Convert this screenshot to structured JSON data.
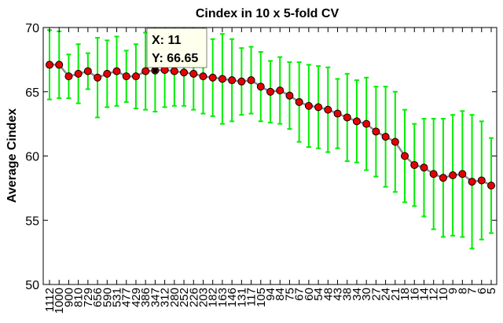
{
  "chart_data": {
    "type": "line",
    "title": "Cindex in 10 x 5-fold CV",
    "xlabel": "",
    "ylabel": "Average Cindex",
    "ylim": [
      50,
      70
    ],
    "yticks": [
      50,
      55,
      60,
      65,
      70
    ],
    "grid": false,
    "categories": [
      "1112",
      "1000",
      "900",
      "810",
      "729",
      "656",
      "590",
      "531",
      "477",
      "429",
      "386",
      "347",
      "312",
      "280",
      "252",
      "226",
      "203",
      "182",
      "163",
      "146",
      "131",
      "117",
      "105",
      "94",
      "84",
      "75",
      "67",
      "60",
      "54",
      "48",
      "43",
      "38",
      "34",
      "30",
      "27",
      "24",
      "21",
      "18",
      "16",
      "14",
      "12",
      "10",
      "9",
      "8",
      "7",
      "6",
      "5"
    ],
    "series": [
      {
        "values": [
          67.1,
          67.1,
          66.2,
          66.4,
          66.6,
          66.1,
          66.4,
          66.6,
          66.2,
          66.2,
          66.6,
          66.65,
          66.7,
          66.6,
          66.5,
          66.4,
          66.2,
          66.1,
          66.0,
          65.9,
          65.8,
          65.9,
          65.4,
          65.0,
          65.1,
          64.7,
          64.2,
          63.9,
          63.8,
          63.6,
          63.3,
          63.0,
          62.7,
          62.5,
          61.9,
          61.5,
          61.1,
          60.0,
          59.3,
          59.1,
          58.6,
          58.3,
          58.5,
          58.6,
          58.0,
          58.1,
          57.7
        ],
        "err": [
          2.7,
          2.6,
          1.7,
          2.3,
          1.4,
          3.1,
          2.6,
          2.7,
          2.0,
          2.5,
          3.0,
          3.2,
          2.9,
          2.7,
          2.6,
          2.8,
          2.9,
          3.0,
          3.5,
          3.2,
          2.6,
          2.6,
          2.7,
          2.4,
          2.6,
          2.6,
          3.1,
          3.2,
          3.2,
          3.3,
          2.7,
          3.4,
          3.2,
          3.6,
          3.5,
          3.9,
          3.9,
          3.6,
          3.2,
          3.8,
          4.3,
          4.6,
          4.7,
          4.9,
          5.2,
          4.6,
          3.7
        ]
      }
    ],
    "datatip": {
      "x_label": "X: 11",
      "y_label": "Y: 66.65",
      "index": 11
    },
    "colors": {
      "errorbar": "#00ee00",
      "line": "#8c8c8c",
      "marker_fill": "#e80000",
      "marker_edge": "#000000",
      "tip_bg": "#ffffee"
    }
  }
}
